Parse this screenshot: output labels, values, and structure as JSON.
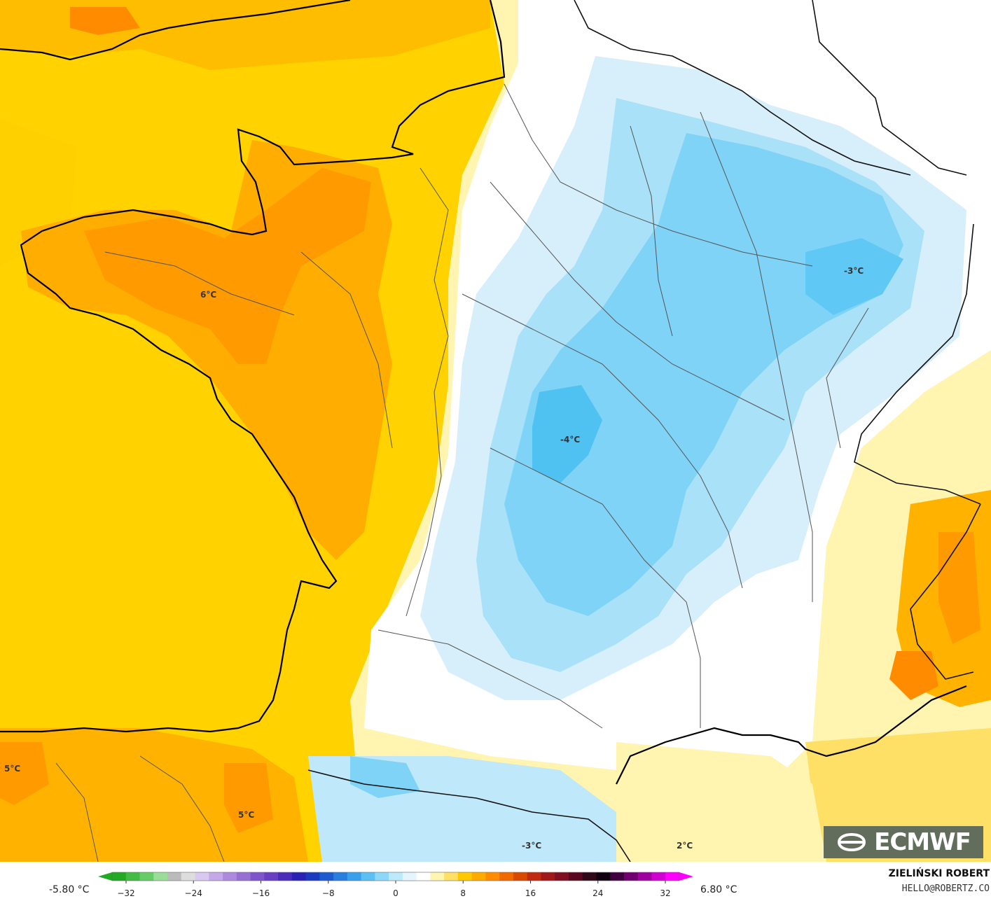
{
  "map": {
    "labels": [
      "6°C",
      "-3°C",
      "-4°C",
      "5°C",
      "5°C",
      "-3°C",
      "2°C"
    ],
    "brand": "ECMWF",
    "logo_icon": "ecmwf-logo-icon"
  },
  "legend": {
    "min_label": "-5.80 °C",
    "max_label": "6.80 °C",
    "ticks": [
      "−32",
      "−24",
      "−16",
      "−8",
      "0",
      "8",
      "16",
      "24",
      "32"
    ],
    "colors": [
      "#22aa22",
      "#44bb44",
      "#66cc66",
      "#99dd99",
      "#bbbbbb",
      "#dddddd",
      "#d9c8f0",
      "#c4a8e8",
      "#ad8add",
      "#9870d4",
      "#7f55cb",
      "#6a40c2",
      "#4a2dbb",
      "#2a22b4",
      "#1a3ac0",
      "#1f5bd0",
      "#2a7ee0",
      "#3aa0ec",
      "#5cc0f5",
      "#8dd8fa",
      "#bde9fc",
      "#e4f5fd",
      "#ffffff",
      "#fff5b0",
      "#ffe066",
      "#ffc800",
      "#ffaa00",
      "#ff8c00",
      "#f06a00",
      "#d94a00",
      "#c02a10",
      "#a01818",
      "#801020",
      "#5a0820",
      "#300818",
      "#100010",
      "#400040",
      "#700070",
      "#a000a0",
      "#d000d0",
      "#ff00ff"
    ],
    "author": "ZIELIŃSKI ROBERT",
    "email": "HELLO@ROBERTZ.CO"
  }
}
